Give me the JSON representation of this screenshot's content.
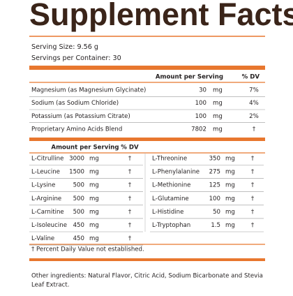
{
  "header": {
    "title": "Supplement Facts",
    "serving_size": "Serving Size: 9.56 g",
    "servings_per_container": "Servings per Container: 30"
  },
  "table": {
    "amount_header": "Amount per Serving",
    "dv_header": "% DV",
    "rows": [
      [
        "Magnesium (as Magnesium Glycinate)",
        "30",
        "mg",
        "7%"
      ],
      [
        "Sodium (as Sodium Chloride)",
        "100",
        "mg",
        "4%"
      ],
      [
        "Potassium (as Potassium Citrate)",
        "100",
        "mg",
        "2%"
      ],
      [
        "Proprietary Amino Acids Blend",
        "7802",
        "mg",
        "†"
      ]
    ]
  },
  "blend": {
    "amount_header": "Amount per Serving",
    "dv_header": "% DV",
    "left": [
      [
        "L-Citrulline",
        "3000",
        "mg",
        "†"
      ],
      [
        "L-Leucine",
        "1500",
        "mg",
        "†"
      ],
      [
        "L-Lysine",
        "500",
        "mg",
        "†"
      ],
      [
        "L-Arginine",
        "500",
        "mg",
        "†"
      ],
      [
        "L-Carnitine",
        "500",
        "mg",
        "†"
      ],
      [
        "L-Isoleucine",
        "450",
        "mg",
        "†"
      ],
      [
        "L-Valine",
        "450",
        "mg",
        "†"
      ]
    ],
    "right": [
      [
        "L-Threonine",
        "350",
        "mg",
        "†"
      ],
      [
        "L-Phenylalanine",
        "275",
        "mg",
        "†"
      ],
      [
        "L-Methionine",
        "125",
        "mg",
        "†"
      ],
      [
        "L-Glutamine",
        "100",
        "mg",
        "†"
      ],
      [
        "L-Histidine",
        "50",
        "mg",
        "†"
      ],
      [
        "L-Tryptophan",
        "1.5",
        "mg",
        "†"
      ]
    ]
  },
  "footnote": "† Percent Daily Value not established.",
  "other_ingredients": [
    "Other ingredients: Natural Flavor, Citric Acid, Sodium Bicarbonate and Stevia",
    "Leaf Extract."
  ]
}
